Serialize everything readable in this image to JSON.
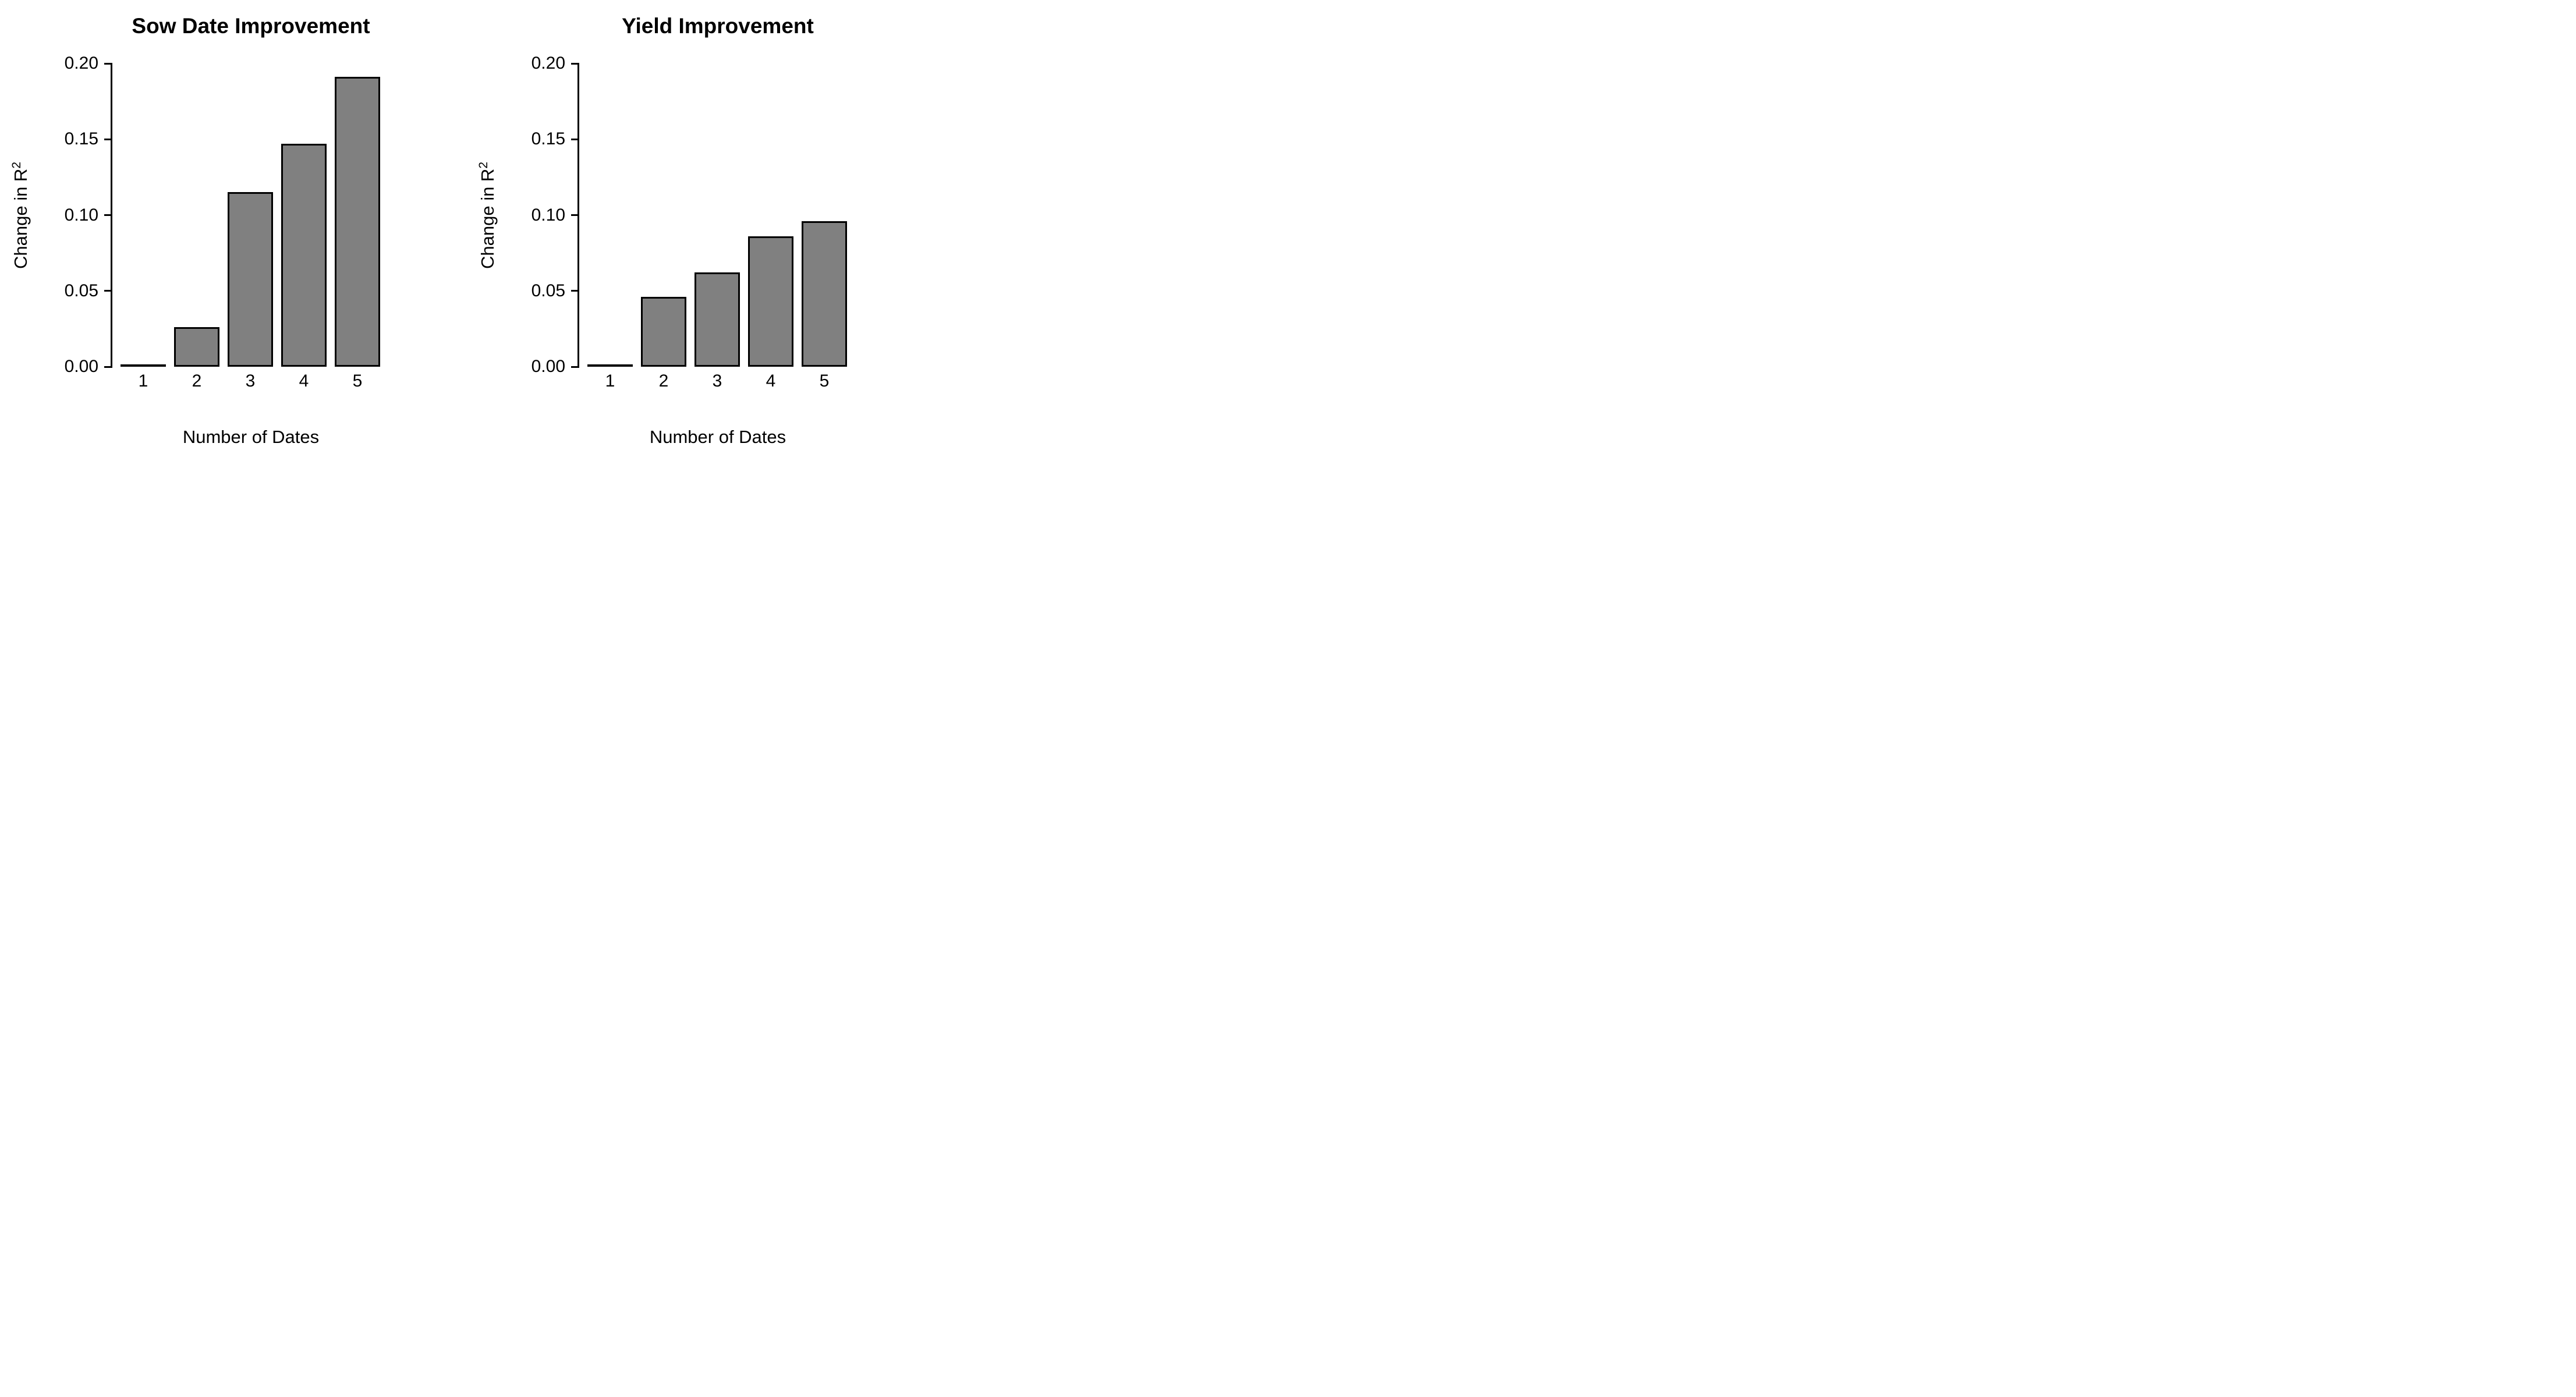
{
  "figure": {
    "background": "#ffffff",
    "bar_fill": "#808080",
    "bar_border": "#000000",
    "axis_color": "#000000",
    "text_color": "#000000"
  },
  "chart_data": [
    {
      "type": "bar",
      "title": "Sow Date Improvement",
      "categories": [
        "1",
        "2",
        "3",
        "4",
        "5"
      ],
      "values": [
        0,
        0.026,
        0.115,
        0.147,
        0.191
      ],
      "xlabel": "Number of Dates",
      "ylabel": "Change in R²",
      "ylabel_base": "Change in R",
      "ylabel_sup": "2",
      "ylim": [
        0,
        0.2
      ],
      "ytick_labels": [
        "0.00",
        "0.05",
        "0.10",
        "0.15",
        "0.20"
      ],
      "grid": false,
      "legend": "none"
    },
    {
      "type": "bar",
      "title": "Yield Improvement",
      "categories": [
        "1",
        "2",
        "3",
        "4",
        "5"
      ],
      "values": [
        0,
        0.046,
        0.062,
        0.086,
        0.096
      ],
      "xlabel": "Number of Dates",
      "ylabel": "Change in R²",
      "ylabel_base": "Change in R",
      "ylabel_sup": "2",
      "ylim": [
        0,
        0.2
      ],
      "ytick_labels": [
        "0.00",
        "0.05",
        "0.10",
        "0.15",
        "0.20"
      ],
      "grid": false,
      "legend": "none"
    }
  ]
}
